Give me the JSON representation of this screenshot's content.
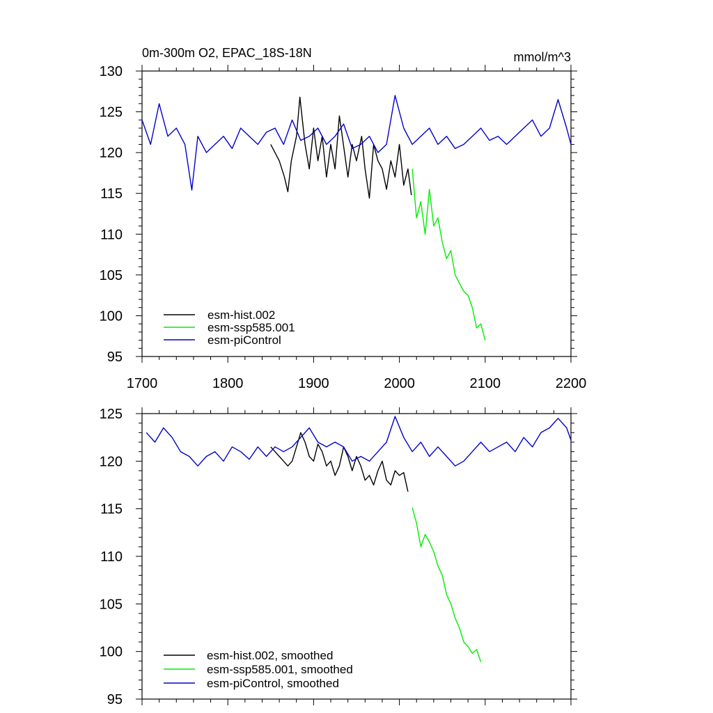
{
  "chart_data": [
    {
      "type": "line",
      "title_left": "0m-300m O2, EPAC_18S-18N",
      "title_right": "mmol/m^3",
      "xlabel": "",
      "ylabel": "",
      "xlim": [
        1700,
        2200
      ],
      "ylim": [
        95,
        130
      ],
      "xticks": [
        1700,
        1800,
        1900,
        2000,
        2100,
        2200
      ],
      "yticks": [
        95,
        100,
        105,
        110,
        115,
        120,
        125,
        130
      ],
      "grid": false,
      "legend_position": "bottom-left",
      "series": [
        {
          "name": "esm-hist.002",
          "color": "#000000",
          "x": [
            1850,
            1860,
            1866,
            1870,
            1874,
            1880,
            1884,
            1890,
            1895,
            1900,
            1905,
            1910,
            1915,
            1920,
            1925,
            1930,
            1936,
            1940,
            1945,
            1950,
            1956,
            1960,
            1965,
            1970,
            1975,
            1980,
            1985,
            1990,
            1995,
            2000,
            2005,
            2010,
            2014
          ],
          "y": [
            121,
            119,
            117,
            115.2,
            119,
            122,
            126.8,
            121,
            118,
            123,
            119,
            122,
            117,
            121,
            118,
            124.5,
            120,
            117,
            121,
            119,
            122,
            118,
            114.4,
            121,
            119,
            118,
            115.5,
            119,
            117,
            121,
            116,
            118,
            114.8
          ]
        },
        {
          "name": "esm-ssp585.001",
          "color": "#00ee00",
          "x": [
            2015,
            2020,
            2025,
            2030,
            2035,
            2040,
            2045,
            2050,
            2055,
            2060,
            2065,
            2070,
            2075,
            2080,
            2085,
            2090,
            2095,
            2100
          ],
          "y": [
            118,
            112,
            114,
            110,
            115.5,
            111,
            112,
            109,
            107,
            108,
            105,
            104,
            103,
            102.5,
            101,
            98.5,
            99,
            97
          ]
        },
        {
          "name": "esm-piControl",
          "color": "#0000cc",
          "x": [
            1700,
            1710,
            1720,
            1730,
            1740,
            1750,
            1758,
            1765,
            1775,
            1785,
            1795,
            1805,
            1815,
            1825,
            1835,
            1845,
            1855,
            1865,
            1875,
            1885,
            1895,
            1905,
            1915,
            1925,
            1935,
            1945,
            1955,
            1965,
            1975,
            1985,
            1995,
            2005,
            2015,
            2025,
            2035,
            2045,
            2055,
            2065,
            2075,
            2085,
            2095,
            2105,
            2115,
            2125,
            2135,
            2145,
            2155,
            2165,
            2175,
            2185,
            2195,
            2200
          ],
          "y": [
            124,
            121,
            126,
            122,
            123,
            121,
            115.4,
            122,
            120,
            121,
            122,
            120.5,
            123,
            122,
            121,
            122.5,
            123,
            121,
            124,
            121.5,
            122,
            123,
            121,
            122,
            123.5,
            120.5,
            121,
            122,
            120,
            121,
            127,
            123,
            121,
            122,
            123,
            121,
            122,
            120.5,
            121,
            122,
            123,
            121.5,
            122,
            121,
            122,
            123,
            124,
            122,
            123,
            126.5,
            123,
            121
          ]
        }
      ]
    },
    {
      "type": "line",
      "title_left": "",
      "title_right": "",
      "xlabel": "",
      "ylabel": "",
      "xlim": [
        1700,
        2200
      ],
      "ylim": [
        95,
        125
      ],
      "xticks": [
        1700,
        1800,
        1900,
        2000,
        2100,
        2200
      ],
      "yticks": [
        95,
        100,
        105,
        110,
        115,
        120,
        125
      ],
      "grid": false,
      "legend_position": "bottom-left",
      "series": [
        {
          "name": "esm-hist.002, smoothed",
          "color": "#000000",
          "x": [
            1850,
            1855,
            1860,
            1865,
            1870,
            1875,
            1880,
            1885,
            1890,
            1895,
            1900,
            1905,
            1910,
            1915,
            1920,
            1925,
            1930,
            1935,
            1940,
            1945,
            1950,
            1955,
            1960,
            1965,
            1970,
            1975,
            1980,
            1985,
            1990,
            1995,
            2000,
            2005,
            2010
          ],
          "y": [
            121.5,
            121,
            120.5,
            120,
            119.5,
            120,
            121.5,
            123,
            122,
            120.5,
            120,
            121.8,
            121,
            119.5,
            120,
            118.5,
            119.5,
            121.5,
            120.5,
            119,
            120.5,
            119.5,
            118,
            118.5,
            117.5,
            119,
            120,
            118,
            117.5,
            119,
            118.5,
            118.8,
            116.8
          ]
        },
        {
          "name": "esm-ssp585.001, smoothed",
          "color": "#00ee00",
          "x": [
            2015,
            2020,
            2025,
            2030,
            2035,
            2040,
            2045,
            2050,
            2055,
            2060,
            2065,
            2070,
            2075,
            2080,
            2085,
            2090,
            2095
          ],
          "y": [
            115.1,
            113.5,
            111,
            112.3,
            111.5,
            110.5,
            109,
            108,
            106,
            105,
            103.5,
            102.5,
            101,
            100.5,
            99.8,
            100.2,
            98.9
          ]
        },
        {
          "name": "esm-piControl, smoothed",
          "color": "#0000cc",
          "x": [
            1705,
            1715,
            1725,
            1735,
            1745,
            1755,
            1765,
            1775,
            1785,
            1795,
            1805,
            1815,
            1825,
            1835,
            1845,
            1855,
            1865,
            1875,
            1885,
            1895,
            1905,
            1915,
            1925,
            1935,
            1945,
            1955,
            1965,
            1975,
            1985,
            1995,
            2005,
            2015,
            2025,
            2035,
            2045,
            2055,
            2065,
            2075,
            2085,
            2095,
            2105,
            2115,
            2125,
            2135,
            2145,
            2155,
            2165,
            2175,
            2185,
            2195,
            2200
          ],
          "y": [
            123,
            122,
            123.5,
            122.5,
            121,
            120.5,
            119.5,
            120.5,
            121,
            120,
            121.5,
            121,
            120.2,
            121.5,
            120.5,
            121.5,
            121,
            121.5,
            122.5,
            123.5,
            122,
            121.5,
            122,
            121.5,
            120,
            120.5,
            120,
            121,
            122,
            124.7,
            122.5,
            121,
            122,
            120.5,
            121.5,
            120.5,
            119.5,
            120,
            121,
            122,
            121,
            121.5,
            122,
            121,
            122.5,
            121.5,
            123,
            123.5,
            124.5,
            123.5,
            122.2
          ]
        }
      ]
    }
  ]
}
